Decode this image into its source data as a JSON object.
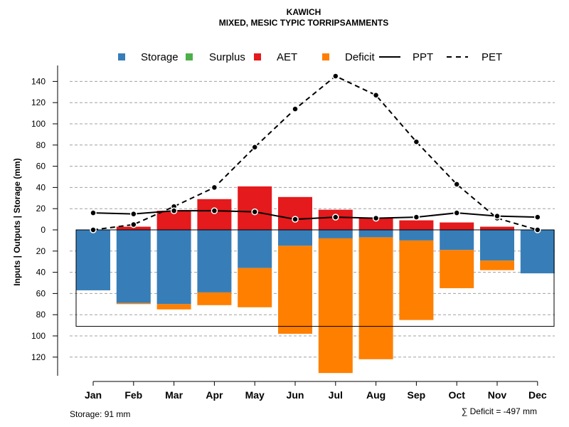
{
  "chart_data": {
    "type": "bar",
    "title": "KAWICH",
    "subtitle": "MIXED, MESIC TYPIC TORRIPSAMMENTS",
    "ylabel": "Inputs | Outputs | Storage     (mm)",
    "categories": [
      "Jan",
      "Feb",
      "Mar",
      "Apr",
      "May",
      "Jun",
      "Jul",
      "Aug",
      "Sep",
      "Oct",
      "Nov",
      "Dec"
    ],
    "upper_ticks": [
      "0",
      "20",
      "40",
      "60",
      "80",
      "100",
      "120",
      "140"
    ],
    "lower_ticks": [
      "20",
      "40",
      "60",
      "80",
      "100",
      "120"
    ],
    "ylim": [
      -137,
      150
    ],
    "legend": [
      {
        "label": "Storage",
        "kind": "box",
        "color": "#377EB8"
      },
      {
        "label": "Surplus",
        "kind": "box",
        "color": "#4DAF4A"
      },
      {
        "label": "AET",
        "kind": "box",
        "color": "#E41A1C"
      },
      {
        "label": "Deficit",
        "kind": "box",
        "color": "#FF7F00"
      },
      {
        "label": "PPT",
        "kind": "line",
        "color": "#000000"
      },
      {
        "label": "PET",
        "kind": "dash",
        "color": "#000000"
      }
    ],
    "series": [
      {
        "name": "AET",
        "values": [
          0,
          3,
          18,
          29,
          41,
          31,
          19,
          11,
          9,
          7,
          3,
          0
        ]
      },
      {
        "name": "Storage",
        "values": [
          57,
          69,
          70,
          59,
          36,
          15,
          8,
          7,
          10,
          19,
          29,
          41
        ]
      },
      {
        "name": "Deficit",
        "values": [
          0,
          1,
          5,
          12,
          37,
          83,
          127,
          115,
          75,
          36,
          9,
          0
        ]
      },
      {
        "name": "Surplus",
        "values": [
          0,
          0,
          0,
          0,
          0,
          0,
          0,
          0,
          0,
          0,
          0,
          0
        ]
      },
      {
        "name": "PPT",
        "values": [
          16,
          15,
          18,
          18,
          17,
          10,
          12,
          11,
          12,
          16,
          13,
          12
        ]
      },
      {
        "name": "PET",
        "values": [
          0,
          5,
          22,
          40,
          78,
          114,
          145,
          127,
          83,
          43,
          11,
          0
        ]
      }
    ],
    "storage_capacity": 91,
    "storage_note": "Storage: 91 mm",
    "deficit_note": "∑ Deficit = -497 mm"
  }
}
